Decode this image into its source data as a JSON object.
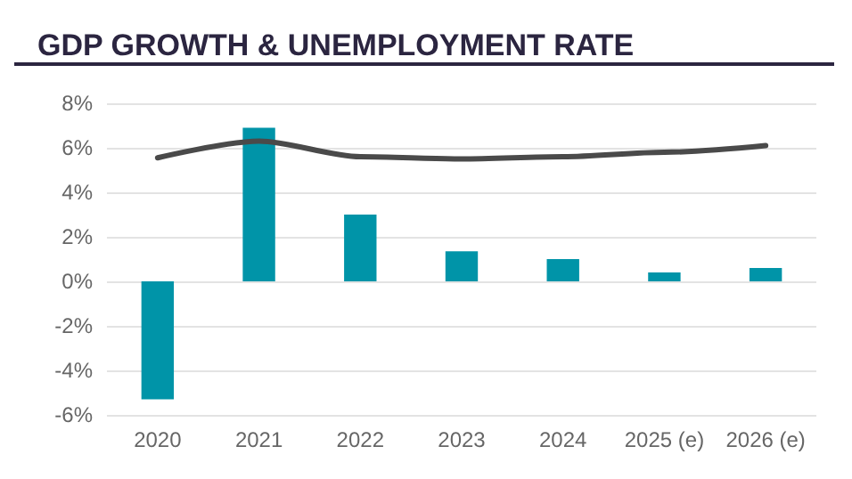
{
  "chart_data": {
    "type": "bar",
    "title": "GDP GROWTH & UNEMPLOYMENT RATE",
    "categories": [
      "2020",
      "2021",
      "2022",
      "2023",
      "2024",
      "2025 (e)",
      "2026 (e)"
    ],
    "series": [
      {
        "color": "#0094a8",
        "values": [
          -5.3,
          6.9,
          3.0,
          1.35,
          1.0,
          0.4,
          0.6
        ]
      },
      {
        "type": "line",
        "color": "#4a4a4a",
        "values": [
          5.55,
          6.3,
          5.6,
          5.5,
          5.6,
          5.8,
          6.1
        ]
      }
    ],
    "ylim": [
      -6,
      8
    ],
    "yticks": [
      {
        "value": -6,
        "label": "-6%"
      },
      {
        "value": -4,
        "label": "-4%"
      },
      {
        "value": -2,
        "label": "-2%"
      },
      {
        "value": 0,
        "label": "0%"
      },
      {
        "value": 2,
        "label": "2%"
      },
      {
        "value": 4,
        "label": "4%"
      },
      {
        "value": 6,
        "label": "6%"
      },
      {
        "value": 8,
        "label": "8%"
      }
    ],
    "grid": "y",
    "marker": "none"
  }
}
